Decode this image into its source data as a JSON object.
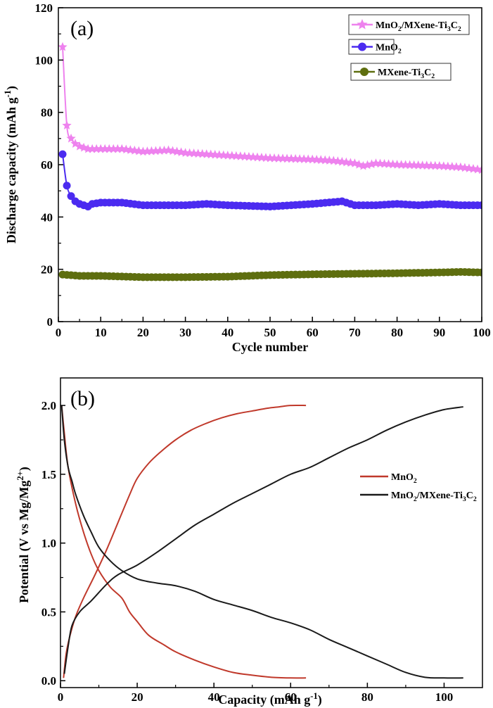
{
  "chart_data": [
    {
      "type": "line",
      "panel_label": "(a)",
      "xlabel": "Cycle number",
      "ylabel": "Discharge capacity (mAh g^-1)",
      "xlim": [
        0,
        100
      ],
      "ylim": [
        0,
        120
      ],
      "xticks": [
        0,
        10,
        20,
        30,
        40,
        50,
        60,
        70,
        80,
        90,
        100
      ],
      "yticks": [
        0,
        20,
        40,
        60,
        80,
        100,
        120
      ],
      "legend_placement": "top-right",
      "series": [
        {
          "name": "MnO2/MXene-Ti3C2",
          "color": "#ee82ee",
          "marker": "star",
          "points": [
            [
              1,
              105
            ],
            [
              2,
              75
            ],
            [
              3,
              70
            ],
            [
              4,
              68
            ],
            [
              5,
              67
            ],
            [
              7,
              66
            ],
            [
              10,
              66
            ],
            [
              15,
              66
            ],
            [
              20,
              65
            ],
            [
              26,
              65.5
            ],
            [
              30,
              64.5
            ],
            [
              40,
              63.5
            ],
            [
              50,
              62.5
            ],
            [
              60,
              62
            ],
            [
              65,
              61.5
            ],
            [
              70,
              60.5
            ],
            [
              72,
              59.5
            ],
            [
              75,
              60.5
            ],
            [
              80,
              60
            ],
            [
              90,
              59.5
            ],
            [
              95,
              59
            ],
            [
              100,
              58
            ]
          ]
        },
        {
          "name": "MnO2",
          "color": "#4b2bf0",
          "marker": "circle",
          "points": [
            [
              1,
              64
            ],
            [
              2,
              52
            ],
            [
              3,
              48
            ],
            [
              4,
              46
            ],
            [
              5,
              45
            ],
            [
              7,
              44
            ],
            [
              8,
              45
            ],
            [
              10,
              45.5
            ],
            [
              15,
              45.5
            ],
            [
              20,
              44.5
            ],
            [
              25,
              44.5
            ],
            [
              30,
              44.5
            ],
            [
              35,
              45
            ],
            [
              40,
              44.5
            ],
            [
              50,
              44
            ],
            [
              60,
              45
            ],
            [
              67,
              46
            ],
            [
              70,
              44.5
            ],
            [
              75,
              44.5
            ],
            [
              80,
              45
            ],
            [
              85,
              44.5
            ],
            [
              90,
              45
            ],
            [
              95,
              44.5
            ],
            [
              100,
              44.5
            ]
          ]
        },
        {
          "name": "MXene-Ti3C2",
          "color": "#5e6e0f",
          "marker": "circle",
          "points": [
            [
              1,
              18
            ],
            [
              5,
              17.5
            ],
            [
              10,
              17.5
            ],
            [
              20,
              17
            ],
            [
              30,
              17
            ],
            [
              40,
              17.2
            ],
            [
              50,
              17.8
            ],
            [
              60,
              18.1
            ],
            [
              70,
              18.3
            ],
            [
              80,
              18.5
            ],
            [
              90,
              18.8
            ],
            [
              95,
              19
            ],
            [
              100,
              18.8
            ]
          ]
        }
      ]
    },
    {
      "type": "line",
      "panel_label": "(b)",
      "xlabel": "Capacity (mAh g^-1)",
      "ylabel": "Potential (V vs Mg/Mg^2+)",
      "xlim": [
        0,
        110
      ],
      "ylim": [
        -0.05,
        2.2
      ],
      "xticks": [
        0,
        20,
        40,
        60,
        80,
        100
      ],
      "yticks": [
        0.0,
        0.5,
        1.0,
        1.5,
        2.0
      ],
      "legend_placement": "right",
      "series": [
        {
          "name": "MnO2",
          "color": "#c0392b",
          "curves": [
            [
              [
                0.3,
                2.0
              ],
              [
                1,
                1.8
              ],
              [
                2,
                1.55
              ],
              [
                4,
                1.28
              ],
              [
                6,
                1.08
              ],
              [
                8,
                0.92
              ],
              [
                10,
                0.8
              ],
              [
                13,
                0.68
              ],
              [
                16,
                0.6
              ],
              [
                18,
                0.5
              ],
              [
                20,
                0.43
              ],
              [
                23,
                0.33
              ],
              [
                27,
                0.26
              ],
              [
                30,
                0.21
              ],
              [
                35,
                0.15
              ],
              [
                40,
                0.1
              ],
              [
                45,
                0.06
              ],
              [
                50,
                0.04
              ],
              [
                55,
                0.025
              ],
              [
                60,
                0.02
              ],
              [
                64,
                0.02
              ]
            ],
            [
              [
                0.8,
                0.02
              ],
              [
                1.5,
                0.2
              ],
              [
                2.5,
                0.33
              ],
              [
                4,
                0.47
              ],
              [
                6,
                0.6
              ],
              [
                9,
                0.77
              ],
              [
                12,
                0.95
              ],
              [
                15,
                1.15
              ],
              [
                18,
                1.35
              ],
              [
                20,
                1.47
              ],
              [
                23,
                1.58
              ],
              [
                26,
                1.66
              ],
              [
                30,
                1.75
              ],
              [
                34,
                1.82
              ],
              [
                38,
                1.87
              ],
              [
                42,
                1.91
              ],
              [
                46,
                1.94
              ],
              [
                50,
                1.96
              ],
              [
                54,
                1.98
              ],
              [
                57,
                1.99
              ],
              [
                60,
                2.0
              ],
              [
                64,
                2.0
              ]
            ]
          ]
        },
        {
          "name": "MnO2/MXene-Ti3C2",
          "color": "#1a1a1a",
          "curves": [
            [
              [
                0.3,
                2.0
              ],
              [
                1,
                1.75
              ],
              [
                2,
                1.55
              ],
              [
                3,
                1.45
              ],
              [
                4,
                1.35
              ],
              [
                6,
                1.2
              ],
              [
                8,
                1.08
              ],
              [
                10,
                0.97
              ],
              [
                13,
                0.87
              ],
              [
                16,
                0.8
              ],
              [
                20,
                0.74
              ],
              [
                25,
                0.71
              ],
              [
                30,
                0.69
              ],
              [
                35,
                0.65
              ],
              [
                40,
                0.59
              ],
              [
                45,
                0.55
              ],
              [
                50,
                0.51
              ],
              [
                55,
                0.46
              ],
              [
                60,
                0.42
              ],
              [
                65,
                0.37
              ],
              [
                70,
                0.3
              ],
              [
                75,
                0.24
              ],
              [
                80,
                0.18
              ],
              [
                85,
                0.12
              ],
              [
                90,
                0.06
              ],
              [
                95,
                0.025
              ],
              [
                100,
                0.02
              ],
              [
                105,
                0.02
              ]
            ],
            [
              [
                1,
                0.05
              ],
              [
                2,
                0.25
              ],
              [
                3,
                0.4
              ],
              [
                5,
                0.5
              ],
              [
                8,
                0.58
              ],
              [
                12,
                0.7
              ],
              [
                15,
                0.77
              ],
              [
                20,
                0.84
              ],
              [
                25,
                0.93
              ],
              [
                30,
                1.03
              ],
              [
                35,
                1.13
              ],
              [
                40,
                1.21
              ],
              [
                45,
                1.29
              ],
              [
                50,
                1.36
              ],
              [
                55,
                1.43
              ],
              [
                60,
                1.5
              ],
              [
                65,
                1.55
              ],
              [
                70,
                1.62
              ],
              [
                75,
                1.69
              ],
              [
                80,
                1.75
              ],
              [
                85,
                1.82
              ],
              [
                90,
                1.88
              ],
              [
                95,
                1.93
              ],
              [
                100,
                1.97
              ],
              [
                105,
                1.99
              ]
            ]
          ]
        }
      ]
    }
  ]
}
